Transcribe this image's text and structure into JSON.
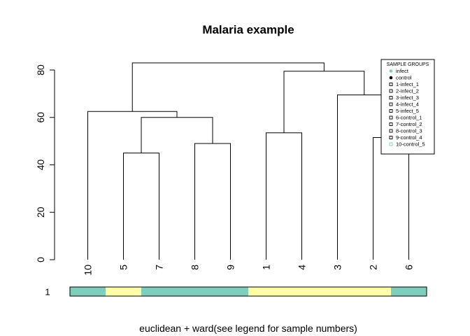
{
  "chart_data": {
    "type": "dendrogram",
    "title": "Malaria example",
    "xlabel": "euclidean + ward(see legend for sample numbers)",
    "ylabel": "",
    "ylim": [
      0,
      84
    ],
    "y_ticks": [
      0,
      20,
      40,
      60,
      80
    ],
    "leaf_order": [
      "10",
      "5",
      "7",
      "8",
      "9",
      "1",
      "4",
      "3",
      "2",
      "6"
    ],
    "merges": [
      {
        "id": "m1",
        "left": "5",
        "right": "7",
        "height": 45
      },
      {
        "id": "m2",
        "left": "8",
        "right": "9",
        "height": 49
      },
      {
        "id": "m3",
        "left": "2",
        "right": "6",
        "height": 51.5
      },
      {
        "id": "m4",
        "left": "1",
        "right": "4",
        "height": 53.5
      },
      {
        "id": "m5",
        "left": "m1",
        "right": "m2",
        "height": 60
      },
      {
        "id": "m6",
        "left": "10",
        "right": "m5",
        "height": 62.5
      },
      {
        "id": "m7",
        "left": "3",
        "right": "m3",
        "height": 69.5
      },
      {
        "id": "m8",
        "left": "m4",
        "right": "m7",
        "height": 79.5
      },
      {
        "id": "m9",
        "left": "m6",
        "right": "m8",
        "height": 83
      }
    ],
    "color_bar": {
      "row_label": "1",
      "colors": [
        "#7fcdbb",
        "#ffffa8",
        "#7fcdbb",
        "#7fcdbb",
        "#7fcdbb",
        "#ffffa8",
        "#ffffa8",
        "#ffffa8",
        "#ffffa8",
        "#7fcdbb"
      ]
    },
    "legend": {
      "title": "SAMPLE GROUPS",
      "placement": "top-right",
      "entries": [
        {
          "label": "infect",
          "marker": "dot",
          "color": "#7fcdbb"
        },
        {
          "label": "control",
          "marker": "dot",
          "color": "#000000"
        },
        {
          "label": "1-infect_1",
          "marker": "square",
          "color": "#000000"
        },
        {
          "label": "2-infect_2",
          "marker": "square",
          "color": "#000000"
        },
        {
          "label": "3-infect_3",
          "marker": "square",
          "color": "#000000"
        },
        {
          "label": "4-infect_4",
          "marker": "square",
          "color": "#000000"
        },
        {
          "label": "5-infect_5",
          "marker": "square",
          "color": "#000000"
        },
        {
          "label": "6-control_1",
          "marker": "square",
          "color": "#000000"
        },
        {
          "label": "7-control_2",
          "marker": "square",
          "color": "#000000"
        },
        {
          "label": "8-control_3",
          "marker": "square",
          "color": "#000000"
        },
        {
          "label": "9-control_4",
          "marker": "square",
          "color": "#000000"
        },
        {
          "label": "10-control_5",
          "marker": "square",
          "color": "#7fcdbb"
        }
      ]
    }
  }
}
